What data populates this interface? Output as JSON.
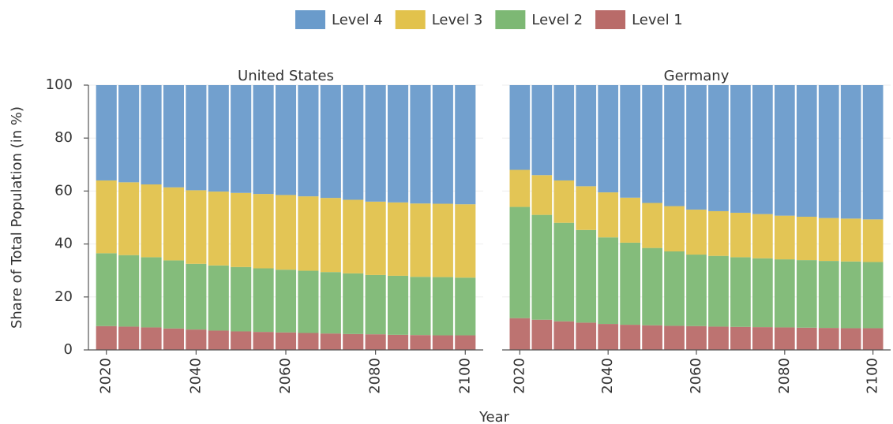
{
  "chart_data": [
    {
      "type": "bar",
      "stacked": true,
      "title": "United States",
      "ylabel": "Share of Total Population (in %)",
      "xlabel": "Year",
      "x": [
        2020,
        2025,
        2030,
        2035,
        2040,
        2045,
        2050,
        2055,
        2060,
        2065,
        2070,
        2075,
        2080,
        2085,
        2090,
        2095,
        2100
      ],
      "series": [
        {
          "name": "Level 4",
          "color": "#6a9bcb",
          "values": [
            36,
            36.7,
            37.5,
            38.6,
            39.7,
            40.2,
            40.7,
            41.1,
            41.5,
            42,
            42.6,
            43.3,
            44,
            44.3,
            44.7,
            44.8,
            45
          ]
        },
        {
          "name": "Level 3",
          "color": "#e2c24c",
          "values": [
            27.5,
            27.5,
            27.5,
            27.6,
            27.8,
            27.9,
            28.0,
            28.1,
            28.2,
            28.1,
            28.0,
            27.8,
            27.7,
            27.7,
            27.7,
            27.7,
            27.7
          ]
        },
        {
          "name": "Level 2",
          "color": "#7db874",
          "values": [
            27.5,
            27.0,
            26.5,
            25.7,
            24.8,
            24.6,
            24.3,
            24.0,
            23.7,
            23.5,
            23.2,
            22.9,
            22.4,
            22.3,
            22.0,
            22.0,
            21.8
          ]
        },
        {
          "name": "Level 1",
          "color": "#b96b69",
          "values": [
            9,
            8.8,
            8.5,
            8.1,
            7.7,
            7.3,
            7,
            6.8,
            6.6,
            6.4,
            6.2,
            6.0,
            5.9,
            5.7,
            5.6,
            5.5,
            5.5
          ]
        }
      ],
      "xlim": [
        2016,
        2104
      ],
      "xticks": [
        2020,
        2040,
        2060,
        2080,
        2100
      ],
      "ylim": [
        0,
        100
      ],
      "yticks": [
        0,
        20,
        40,
        60,
        80,
        100
      ],
      "grid": true,
      "legend": "top"
    },
    {
      "type": "bar",
      "stacked": true,
      "title": "Germany",
      "x": [
        2020,
        2025,
        2030,
        2035,
        2040,
        2045,
        2050,
        2055,
        2060,
        2065,
        2070,
        2075,
        2080,
        2085,
        2090,
        2095,
        2100
      ],
      "series": [
        {
          "color": "#6a9bcb",
          "values": [
            32,
            34,
            36,
            38.2,
            40.5,
            42.5,
            44.5,
            45.7,
            47,
            47.6,
            48.2,
            48.7,
            49.3,
            49.7,
            50.2,
            50.4,
            50.7
          ]
        },
        {
          "color": "#e2c24c",
          "values": [
            14,
            15,
            16,
            16.5,
            17,
            17,
            17,
            17.1,
            17,
            16.9,
            16.8,
            16.7,
            16.5,
            16.4,
            16.2,
            16.2,
            16.1
          ]
        },
        {
          "color": "#7db874",
          "values": [
            42,
            39.6,
            37.2,
            35.0,
            32.7,
            31.0,
            29.2,
            28.1,
            27.0,
            26.7,
            26.3,
            26.0,
            25.7,
            25.5,
            25.3,
            25.2,
            25.0
          ]
        },
        {
          "color": "#b96b69",
          "values": [
            12,
            11.4,
            10.8,
            10.3,
            9.8,
            9.5,
            9.3,
            9.1,
            9.0,
            8.8,
            8.7,
            8.6,
            8.5,
            8.4,
            8.3,
            8.2,
            8.2
          ]
        }
      ],
      "xlim": [
        2016,
        2104
      ],
      "xticks": [
        2020,
        2040,
        2060,
        2080,
        2100
      ],
      "ylim": [
        0,
        100
      ],
      "yticks": [
        0,
        20,
        40,
        60,
        80,
        100
      ],
      "grid": true
    }
  ]
}
